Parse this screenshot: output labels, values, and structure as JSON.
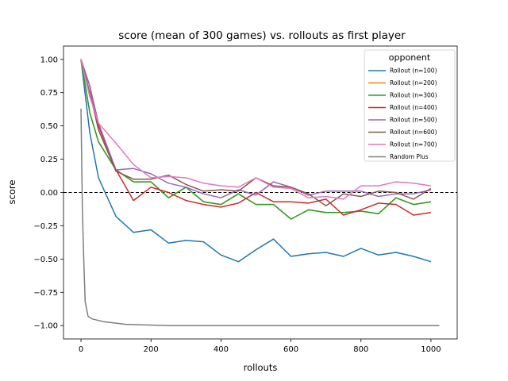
{
  "chart_data": {
    "type": "line",
    "title": "score (mean of 300 games) vs. rollouts as first player",
    "xlabel": "rollouts",
    "ylabel": "score",
    "xlim": [
      -50,
      1075
    ],
    "ylim": [
      -1.1,
      1.1
    ],
    "xticks": [
      0,
      200,
      400,
      600,
      800,
      1000
    ],
    "xtick_labels": [
      "0",
      "200",
      "400",
      "600",
      "800",
      "1000"
    ],
    "yticks": [
      -1.0,
      -0.75,
      -0.5,
      -0.25,
      0.0,
      0.25,
      0.5,
      0.75,
      1.0
    ],
    "ytick_labels": [
      "−1.00",
      "−0.75",
      "−0.50",
      "−0.25",
      "0.00",
      "0.25",
      "0.50",
      "0.75",
      "1.00"
    ],
    "grid": false,
    "reference_line": {
      "y": 0,
      "style": "dashed",
      "color": "#000000"
    },
    "legend": {
      "title": "opponent",
      "placement": "top-right"
    },
    "series": [
      {
        "name": "Rollout (n=100)",
        "color": "#1f77b4",
        "x": [
          0,
          25,
          50,
          100,
          150,
          200,
          250,
          300,
          350,
          400,
          450,
          500,
          550,
          600,
          650,
          700,
          750,
          800,
          850,
          900,
          950,
          1000
        ],
        "y": [
          1.0,
          0.45,
          0.11,
          -0.18,
          -0.3,
          -0.28,
          -0.38,
          -0.36,
          -0.37,
          -0.47,
          -0.52,
          -0.43,
          -0.35,
          -0.48,
          -0.46,
          -0.45,
          -0.48,
          -0.42,
          -0.47,
          -0.45,
          -0.48,
          -0.52
        ]
      },
      {
        "name": "Rollout (n=200)",
        "color": "#ff7f0e",
        "x": [
          0,
          25,
          50,
          100,
          150,
          200,
          250,
          300,
          350,
          400,
          450,
          500,
          550,
          600,
          650,
          700,
          750,
          800,
          850,
          900,
          950,
          1000
        ],
        "y": [
          1.0,
          0.6,
          0.38,
          0.17,
          0.08,
          0.08,
          -0.04,
          0.04,
          -0.07,
          -0.09,
          -0.01,
          -0.09,
          -0.09,
          -0.2,
          -0.13,
          -0.15,
          -0.15,
          -0.14,
          -0.16,
          -0.04,
          -0.09,
          -0.07
        ]
      },
      {
        "name": "Rollout (n=300)",
        "color": "#2ca02c",
        "x": [
          0,
          25,
          50,
          100,
          150,
          200,
          250,
          300,
          350,
          400,
          450,
          500,
          550,
          600,
          650,
          700,
          750,
          800,
          850,
          900,
          950,
          1000
        ],
        "y": [
          1.0,
          0.6,
          0.38,
          0.17,
          0.08,
          0.08,
          -0.04,
          0.04,
          -0.07,
          -0.09,
          -0.01,
          -0.09,
          -0.09,
          -0.2,
          -0.13,
          -0.15,
          -0.15,
          -0.14,
          -0.16,
          -0.04,
          -0.09,
          -0.07
        ]
      },
      {
        "name": "Rollout (n=400)",
        "color": "#d62728",
        "x": [
          0,
          25,
          50,
          100,
          150,
          200,
          250,
          300,
          350,
          400,
          450,
          500,
          550,
          600,
          650,
          700,
          750,
          800,
          850,
          900,
          950,
          1000
        ],
        "y": [
          1.0,
          0.8,
          0.5,
          0.17,
          -0.06,
          0.04,
          0.0,
          -0.06,
          -0.09,
          -0.11,
          -0.08,
          0.0,
          -0.07,
          -0.07,
          -0.08,
          -0.05,
          -0.17,
          -0.13,
          -0.08,
          -0.09,
          -0.17,
          -0.15
        ]
      },
      {
        "name": "Rollout (n=500)",
        "color": "#9467bd",
        "x": [
          0,
          25,
          50,
          100,
          150,
          200,
          250,
          300,
          350,
          400,
          450,
          500,
          550,
          600,
          650,
          700,
          750,
          800,
          850,
          900,
          950,
          1000
        ],
        "y": [
          1.0,
          0.8,
          0.52,
          0.17,
          0.18,
          0.14,
          0.07,
          0.04,
          -0.01,
          -0.04,
          0.02,
          -0.02,
          0.08,
          0.04,
          -0.02,
          0.01,
          0.01,
          0.01,
          -0.03,
          -0.01,
          -0.01,
          0.02
        ]
      },
      {
        "name": "Rollout (n=600)",
        "color": "#8c564b",
        "x": [
          0,
          25,
          50,
          100,
          150,
          200,
          250,
          300,
          350,
          400,
          450,
          500,
          550,
          600,
          650,
          700,
          750,
          800,
          850,
          900,
          950,
          1000
        ],
        "y": [
          1.0,
          0.75,
          0.47,
          0.16,
          0.1,
          0.1,
          0.13,
          0.06,
          0.01,
          0.02,
          0.01,
          0.11,
          0.05,
          0.04,
          -0.01,
          -0.1,
          -0.01,
          -0.03,
          0.01,
          0.0,
          -0.05,
          0.03
        ]
      },
      {
        "name": "Rollout (n=700)",
        "color": "#e377c2",
        "x": [
          0,
          25,
          50,
          100,
          150,
          200,
          250,
          300,
          350,
          400,
          450,
          500,
          550,
          600,
          650,
          700,
          750,
          800,
          850,
          900,
          950,
          1000
        ],
        "y": [
          1.0,
          0.72,
          0.52,
          0.37,
          0.21,
          0.11,
          0.12,
          0.11,
          0.07,
          0.05,
          0.04,
          0.11,
          0.04,
          0.03,
          -0.04,
          -0.03,
          -0.05,
          0.05,
          0.05,
          0.08,
          0.07,
          0.05
        ]
      },
      {
        "name": "Random Plus",
        "color": "#7f7f7f",
        "x": [
          0,
          4,
          8,
          12,
          20,
          32,
          64,
          128,
          256,
          512,
          1024
        ],
        "y": [
          0.63,
          -0.13,
          -0.52,
          -0.82,
          -0.93,
          -0.95,
          -0.97,
          -0.99,
          -1.0,
          -1.0,
          -1.0
        ]
      }
    ]
  }
}
